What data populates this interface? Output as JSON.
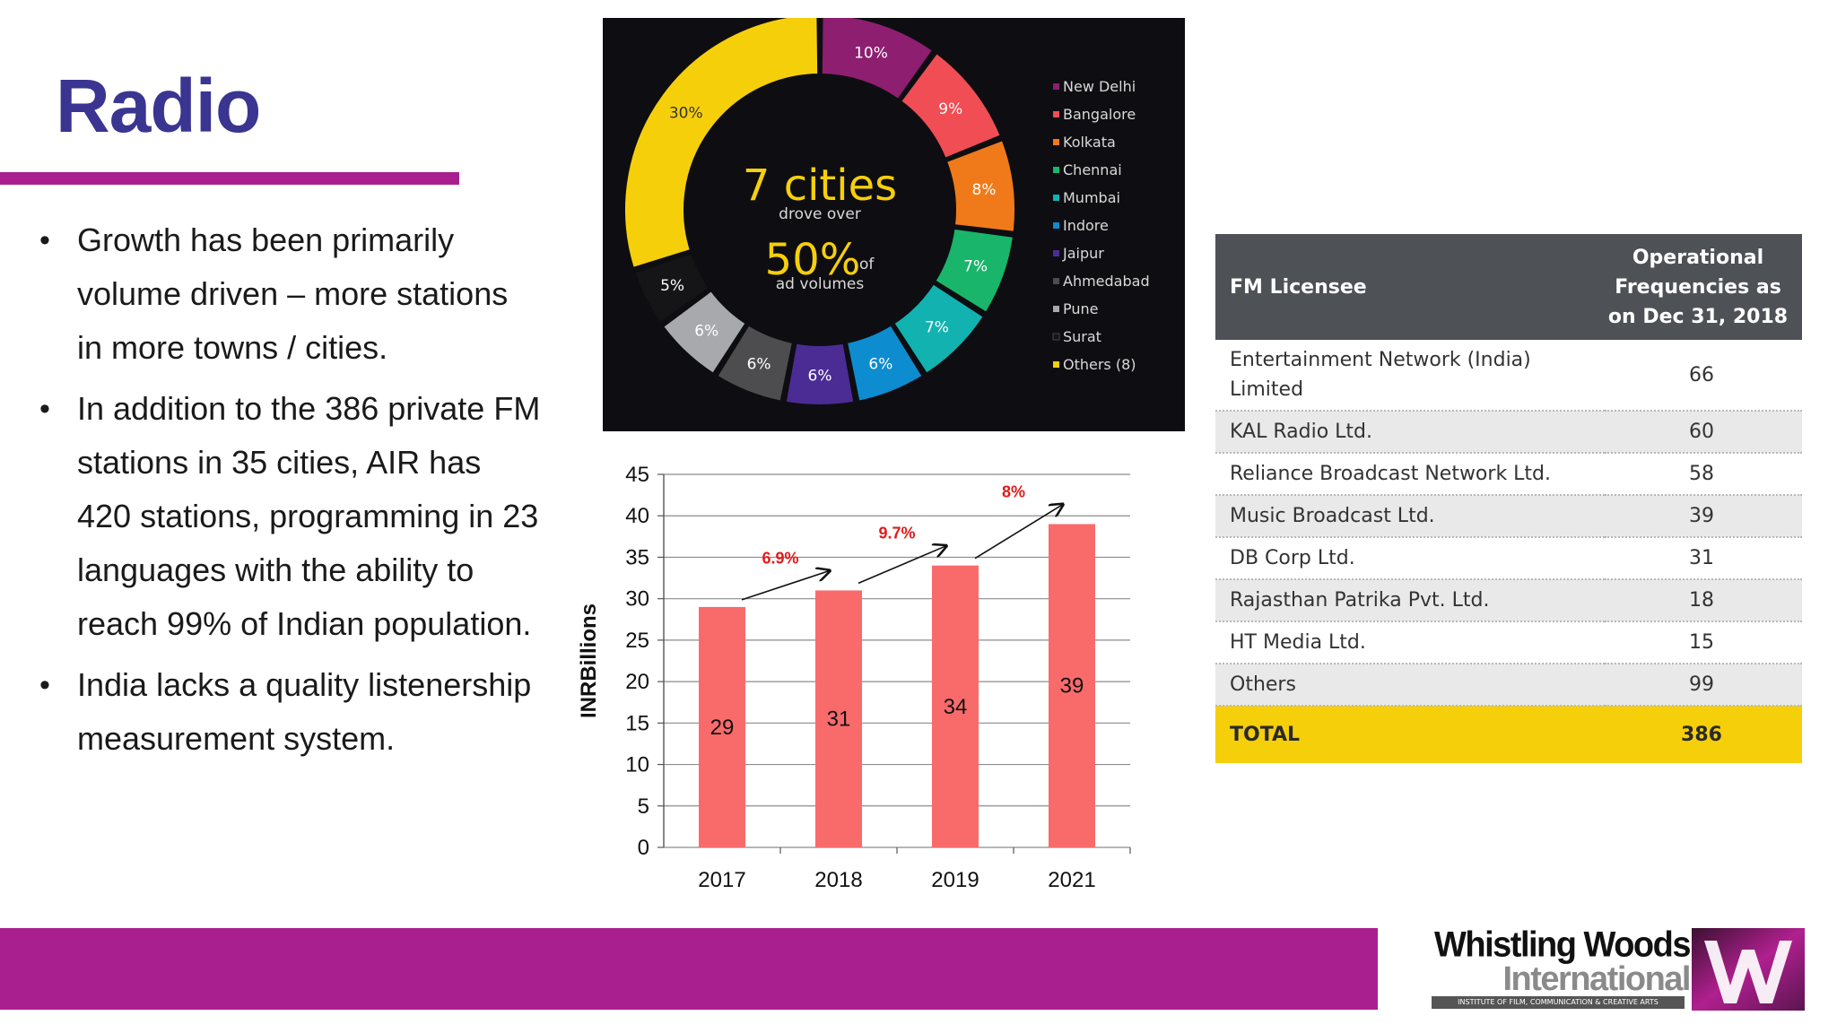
{
  "slide": {
    "title": "Radio",
    "accent_color": "#aa1f8f",
    "title_color": "#3a3591"
  },
  "bullets": [
    "Growth has been primarily volume driven – more stations in more towns / cities.",
    "In addition to the 386 private FM stations in 35 cities, AIR has 420 stations, programming in 23 languages with the ability to reach 99% of Indian population.",
    "India lacks a quality listenership measurement system."
  ],
  "donut_center": {
    "line1": "7 cities",
    "line2": "drove over",
    "big": "50%",
    "small": "of",
    "line3": "ad volumes"
  },
  "chart_data": [
    {
      "type": "pie",
      "style": "donut",
      "categories": [
        "New Delhi",
        "Bangalore",
        "Kolkata",
        "Chennai",
        "Mumbai",
        "Indore",
        "Jaipur",
        "Ahmedabad",
        "Pune",
        "Surat",
        "Others (8)"
      ],
      "values": [
        10,
        9,
        8,
        7,
        7,
        6,
        6,
        6,
        6,
        5,
        30
      ],
      "labels": [
        "10%",
        "9%",
        "8%",
        "7%",
        "7%",
        "6%",
        "6%",
        "6%",
        "6%",
        "5%",
        "30%"
      ],
      "colors": [
        "#8e1e70",
        "#f04d54",
        "#f07a1a",
        "#19b56a",
        "#12b2b0",
        "#0d8ccf",
        "#4b2c94",
        "#4d4d4f",
        "#a7a9ac",
        "#151517",
        "#f6cf0b"
      ],
      "legend_position": "right",
      "background": "#0e0e12"
    },
    {
      "type": "bar",
      "categories": [
        "2017",
        "2018",
        "2019",
        "2021"
      ],
      "values": [
        29,
        31,
        34,
        39
      ],
      "ylabel": "INRBillions",
      "ylim": [
        0,
        45
      ],
      "yticks": [
        0,
        5,
        10,
        15,
        20,
        25,
        30,
        35,
        40,
        45
      ],
      "grid": true,
      "bar_color": "#f96b6b",
      "growth_annotations": [
        "6.9%",
        "9.7%",
        "8%"
      ],
      "annotation_color": "#e01b1b"
    }
  ],
  "fm_table": {
    "header_bg": "#4e5156",
    "headers": [
      "FM Licensee",
      "Operational Frequencies as on Dec 31, 2018"
    ],
    "header_col2_lines": [
      "Operational",
      "Frequencies as",
      "on Dec 31, 2018"
    ],
    "rows": [
      {
        "name": "Entertainment Network (India) Limited",
        "value": "66"
      },
      {
        "name": "KAL Radio Ltd.",
        "value": "60"
      },
      {
        "name": "Reliance Broadcast Network Ltd.",
        "value": "58"
      },
      {
        "name": "Music Broadcast Ltd.",
        "value": "39"
      },
      {
        "name": "DB Corp Ltd.",
        "value": "31"
      },
      {
        "name": "Rajasthan Patrika Pvt. Ltd.",
        "value": "18"
      },
      {
        "name": "HT Media Ltd.",
        "value": "15"
      },
      {
        "name": "Others",
        "value": "99"
      }
    ],
    "total": {
      "name": "TOTAL",
      "value": "386"
    },
    "total_bg": "#f6cf0b"
  },
  "logo": {
    "line1": "Whistling Woods",
    "line2": "International",
    "tagline": "INSTITUTE OF FILM, COMMUNICATION & CREATIVE ARTS",
    "mark_icon": "ww-monogram-icon"
  }
}
